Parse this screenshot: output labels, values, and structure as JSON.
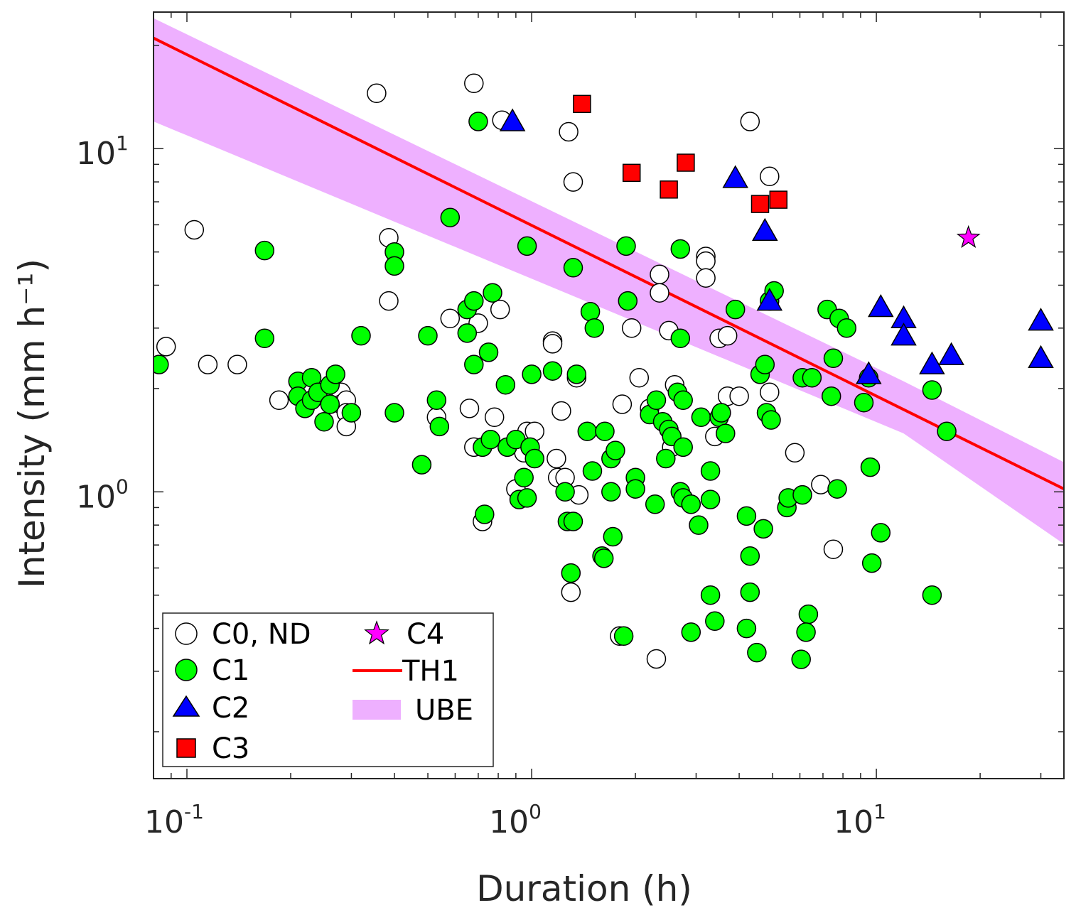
{
  "chart_data": {
    "type": "scatter",
    "xscale": "log",
    "yscale": "log",
    "xlim": [
      0.08,
      35
    ],
    "ylim": [
      0.146,
      25
    ],
    "xlabel": "Duration (h)",
    "ylabel": "Intensity (mm h⁻¹)",
    "x_ticks": [
      {
        "base": "10",
        "exp": "-1"
      },
      {
        "base": "10",
        "exp": "0"
      },
      {
        "base": "10",
        "exp": "1"
      }
    ],
    "y_ticks": [
      {
        "base": "10",
        "exp": "0"
      },
      {
        "base": "10",
        "exp": "1"
      }
    ],
    "colors": {
      "C1": "#00ff00",
      "C2": "#0000ff",
      "C3": "#ff0000",
      "C4": "#ff00ff",
      "TH1": "#ff0000",
      "UBE": "#eeb0ff"
    },
    "legend": {
      "position": "bottom-left",
      "entries": [
        {
          "label": "C0, ND"
        },
        {
          "label": "C1"
        },
        {
          "label": "C2"
        },
        {
          "label": "C3"
        },
        {
          "label": "C4"
        },
        {
          "label": "TH1"
        },
        {
          "label": "UBE"
        }
      ]
    },
    "line": {
      "name": "TH1",
      "x": [
        0.08,
        35
      ],
      "y": [
        21.0,
        1.02
      ]
    },
    "band": {
      "name": "UBE",
      "x": [
        0.08,
        12,
        35
      ],
      "upper": [
        24.0,
        2.1,
        1.22
      ],
      "lower": [
        12.0,
        1.48,
        0.705
      ]
    },
    "series": [
      {
        "name": "C0, ND",
        "marker": "circle",
        "points": [
          [
            0.087,
            2.65
          ],
          [
            0.115,
            2.35
          ],
          [
            0.105,
            5.8
          ],
          [
            0.14,
            2.35
          ],
          [
            0.185,
            1.85
          ],
          [
            0.28,
            1.95
          ],
          [
            0.28,
            1.8
          ],
          [
            0.29,
            1.85
          ],
          [
            0.29,
            1.7
          ],
          [
            0.29,
            1.55
          ],
          [
            0.355,
            14.5
          ],
          [
            0.385,
            5.5
          ],
          [
            0.385,
            3.6
          ],
          [
            0.53,
            1.65
          ],
          [
            0.58,
            3.2
          ],
          [
            0.68,
            15.5
          ],
          [
            0.66,
            1.75
          ],
          [
            0.68,
            1.35
          ],
          [
            0.7,
            3.1
          ],
          [
            0.72,
            0.82
          ],
          [
            0.78,
            1.65
          ],
          [
            0.81,
            3.4
          ],
          [
            0.82,
            12.1
          ],
          [
            0.9,
            1.02
          ],
          [
            0.97,
            1.5
          ],
          [
            1.02,
            1.5
          ],
          [
            0.95,
            1.3
          ],
          [
            1.15,
            2.75
          ],
          [
            1.15,
            2.7
          ],
          [
            1.18,
            1.25
          ],
          [
            1.19,
            1.1
          ],
          [
            1.22,
            1.72
          ],
          [
            1.25,
            1.1
          ],
          [
            1.28,
            11.2
          ],
          [
            1.3,
            0.51
          ],
          [
            1.32,
            8.0
          ],
          [
            1.35,
            2.15
          ],
          [
            1.37,
            0.98
          ],
          [
            1.83,
            1.8
          ],
          [
            1.8,
            0.38
          ],
          [
            1.95,
            3.0
          ],
          [
            2.05,
            2.15
          ],
          [
            2.2,
            1.75
          ],
          [
            2.3,
            0.326
          ],
          [
            2.35,
            4.3
          ],
          [
            2.35,
            3.8
          ],
          [
            2.5,
            2.95
          ],
          [
            2.6,
            2.05
          ],
          [
            2.55,
            1.35
          ],
          [
            3.2,
            4.85
          ],
          [
            3.2,
            4.7
          ],
          [
            3.2,
            4.2
          ],
          [
            3.4,
            1.45
          ],
          [
            3.5,
            2.8
          ],
          [
            3.7,
            2.85
          ],
          [
            3.7,
            1.9
          ],
          [
            4.0,
            1.9
          ],
          [
            4.3,
            12.0
          ],
          [
            4.9,
            8.3
          ],
          [
            4.9,
            1.95
          ],
          [
            5.8,
            1.3
          ],
          [
            6.9,
            1.05
          ],
          [
            7.5,
            0.68
          ]
        ]
      },
      {
        "name": "C1",
        "marker": "circle",
        "points": [
          [
            0.083,
            2.35
          ],
          [
            0.168,
            5.05
          ],
          [
            0.168,
            2.8
          ],
          [
            0.21,
            2.1
          ],
          [
            0.21,
            1.9
          ],
          [
            0.22,
            1.75
          ],
          [
            0.23,
            2.15
          ],
          [
            0.23,
            1.85
          ],
          [
            0.24,
            1.95
          ],
          [
            0.25,
            1.6
          ],
          [
            0.26,
            2.05
          ],
          [
            0.26,
            1.8
          ],
          [
            0.27,
            2.2
          ],
          [
            0.3,
            1.7
          ],
          [
            0.32,
            2.85
          ],
          [
            0.4,
            5.0
          ],
          [
            0.4,
            4.55
          ],
          [
            0.4,
            1.7
          ],
          [
            0.48,
            1.2
          ],
          [
            0.5,
            2.85
          ],
          [
            0.53,
            1.85
          ],
          [
            0.54,
            1.55
          ],
          [
            0.58,
            6.3
          ],
          [
            0.65,
            2.9
          ],
          [
            0.65,
            3.4
          ],
          [
            0.68,
            2.35
          ],
          [
            0.68,
            3.6
          ],
          [
            0.7,
            12.0
          ],
          [
            0.72,
            1.35
          ],
          [
            0.73,
            0.86
          ],
          [
            0.75,
            2.55
          ],
          [
            0.76,
            1.42
          ],
          [
            0.77,
            3.8
          ],
          [
            0.84,
            2.05
          ],
          [
            0.85,
            1.35
          ],
          [
            0.9,
            1.42
          ],
          [
            0.92,
            0.95
          ],
          [
            0.95,
            1.1
          ],
          [
            0.97,
            0.96
          ],
          [
            0.97,
            5.2
          ],
          [
            0.99,
            1.35
          ],
          [
            1.0,
            2.2
          ],
          [
            1.02,
            1.25
          ],
          [
            1.15,
            2.25
          ],
          [
            1.25,
            1.0
          ],
          [
            1.27,
            0.82
          ],
          [
            1.3,
            0.58
          ],
          [
            1.32,
            0.82
          ],
          [
            1.35,
            2.2
          ],
          [
            1.32,
            4.5
          ],
          [
            1.45,
            1.5
          ],
          [
            1.48,
            3.35
          ],
          [
            1.52,
            3.0
          ],
          [
            1.5,
            1.15
          ],
          [
            1.6,
            0.65
          ],
          [
            1.62,
            0.64
          ],
          [
            1.63,
            1.5
          ],
          [
            1.7,
            1.25
          ],
          [
            1.7,
            1.0
          ],
          [
            1.72,
            0.74
          ],
          [
            1.75,
            1.32
          ],
          [
            1.85,
            0.38
          ],
          [
            1.88,
            5.2
          ],
          [
            1.9,
            3.6
          ],
          [
            2.0,
            1.1
          ],
          [
            2.0,
            1.02
          ],
          [
            2.2,
            1.68
          ],
          [
            2.3,
            1.85
          ],
          [
            2.28,
            0.92
          ],
          [
            2.4,
            1.6
          ],
          [
            2.5,
            1.52
          ],
          [
            2.45,
            1.25
          ],
          [
            2.55,
            1.45
          ],
          [
            2.65,
            1.95
          ],
          [
            2.7,
            5.1
          ],
          [
            2.7,
            2.8
          ],
          [
            2.75,
            1.85
          ],
          [
            2.75,
            1.35
          ],
          [
            2.7,
            1.0
          ],
          [
            2.75,
            0.96
          ],
          [
            2.9,
            0.92
          ],
          [
            2.9,
            0.39
          ],
          [
            3.05,
            0.8
          ],
          [
            3.1,
            1.65
          ],
          [
            3.3,
            1.15
          ],
          [
            3.3,
            0.95
          ],
          [
            3.3,
            0.5
          ],
          [
            3.5,
            1.65
          ],
          [
            3.55,
            1.7
          ],
          [
            3.65,
            1.48
          ],
          [
            3.4,
            0.42
          ],
          [
            3.9,
            3.4
          ],
          [
            4.2,
            0.85
          ],
          [
            4.3,
            0.65
          ],
          [
            4.3,
            0.51
          ],
          [
            4.2,
            0.4
          ],
          [
            4.5,
            0.34
          ],
          [
            4.6,
            2.2
          ],
          [
            4.75,
            2.35
          ],
          [
            4.8,
            1.7
          ],
          [
            4.9,
            3.6
          ],
          [
            4.7,
            0.78
          ],
          [
            4.95,
            1.62
          ],
          [
            5.05,
            3.85
          ],
          [
            5.5,
            0.9
          ],
          [
            5.55,
            0.96
          ],
          [
            6.1,
            0.98
          ],
          [
            6.05,
            0.325
          ],
          [
            6.35,
            0.44
          ],
          [
            6.25,
            0.39
          ],
          [
            6.1,
            2.15
          ],
          [
            6.5,
            2.15
          ],
          [
            7.2,
            3.4
          ],
          [
            7.4,
            1.9
          ],
          [
            7.5,
            2.45
          ],
          [
            7.7,
            1.02
          ],
          [
            7.8,
            3.2
          ],
          [
            8.2,
            3.0
          ],
          [
            9.2,
            1.82
          ],
          [
            9.5,
            2.15
          ],
          [
            9.6,
            1.18
          ],
          [
            9.7,
            0.62
          ],
          [
            10.3,
            0.76
          ],
          [
            14.5,
            1.98
          ],
          [
            14.5,
            0.5
          ],
          [
            16.0,
            1.5
          ]
        ]
      },
      {
        "name": "C2",
        "marker": "triangle",
        "points": [
          [
            0.88,
            12.0
          ],
          [
            3.9,
            8.2
          ],
          [
            4.75,
            5.75
          ],
          [
            4.9,
            3.6
          ],
          [
            9.5,
            2.2
          ],
          [
            10.3,
            3.45
          ],
          [
            12.0,
            3.2
          ],
          [
            12.0,
            2.85
          ],
          [
            14.5,
            2.35
          ],
          [
            16.5,
            2.5
          ],
          [
            30.0,
            3.15
          ],
          [
            30.0,
            2.45
          ]
        ]
      },
      {
        "name": "C3",
        "marker": "square",
        "points": [
          [
            1.4,
            13.5
          ],
          [
            1.95,
            8.5
          ],
          [
            2.5,
            7.6
          ],
          [
            2.8,
            9.1
          ],
          [
            4.6,
            6.9
          ],
          [
            5.2,
            7.1
          ]
        ]
      },
      {
        "name": "C4",
        "marker": "star",
        "points": [
          [
            18.5,
            5.5
          ]
        ]
      }
    ]
  }
}
